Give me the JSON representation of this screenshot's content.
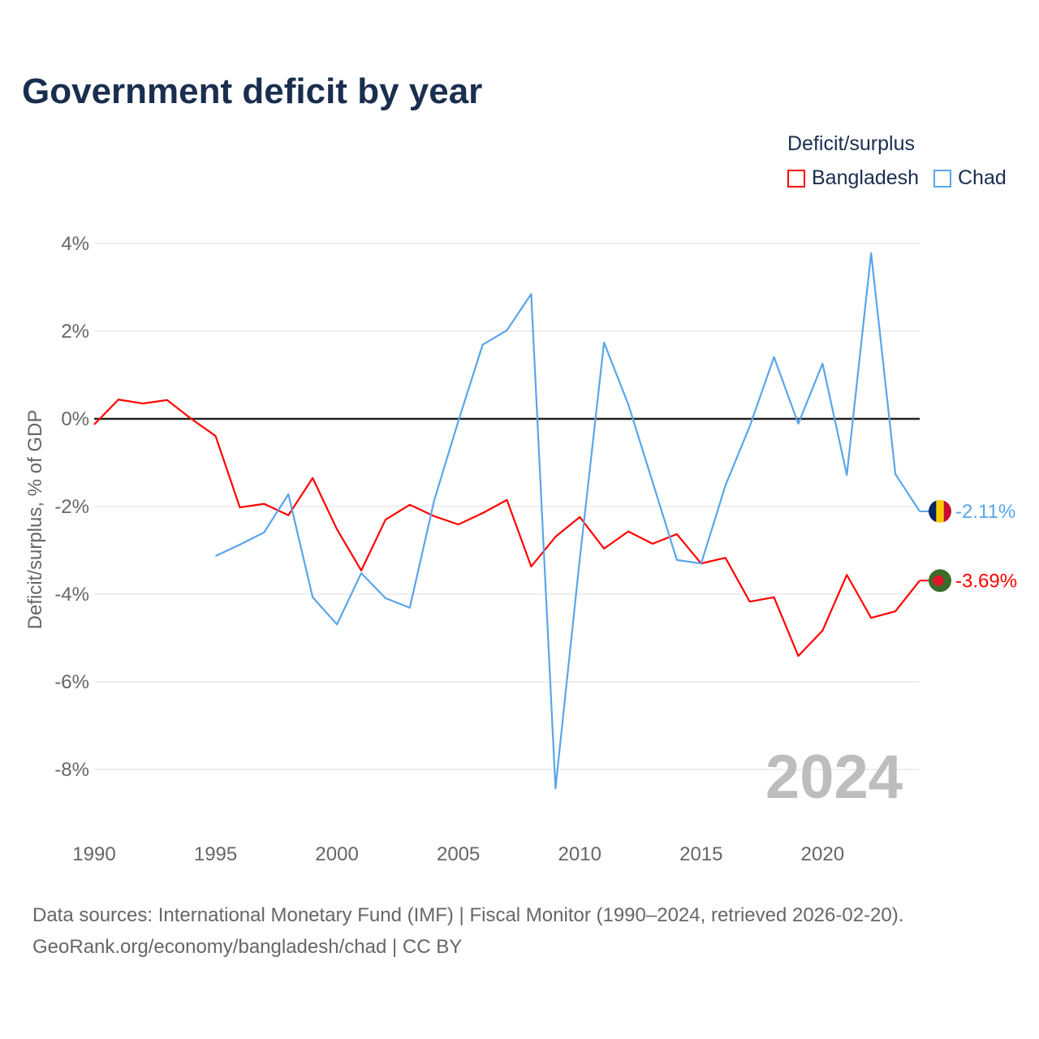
{
  "title": "Government deficit by year",
  "legend": {
    "title": "Deficit/surplus",
    "items": [
      {
        "name": "Bangladesh",
        "color": "#ff0000"
      },
      {
        "name": "Chad",
        "color": "#5aa5ea"
      }
    ]
  },
  "source": {
    "line1": "Data sources: International Monetary Fund (IMF) | Fiscal Monitor (1990–2024, retrieved 2026-02-20).",
    "line2": "GeoRank.org/economy/bangladesh/chad | CC BY"
  },
  "chart_data": {
    "type": "line",
    "title": "Government deficit by year",
    "xlabel": "",
    "ylabel": "Deficit/surplus, % of GDP",
    "xlim": [
      1990,
      2024
    ],
    "ylim": [
      -9,
      4
    ],
    "x_ticks": [
      1990,
      1995,
      2000,
      2005,
      2010,
      2015,
      2020
    ],
    "y_ticks": [
      4,
      2,
      0,
      -2,
      -4,
      -6,
      -8
    ],
    "y_tick_labels": [
      "4%",
      "2%",
      "0%",
      "-2%",
      "-4%",
      "-6%",
      "-8%"
    ],
    "x_tick_labels": [
      "1990",
      "1995",
      "2000",
      "2005",
      "2010",
      "2015",
      "2020"
    ],
    "year_watermark": "2024",
    "grid": true,
    "legend_position": "top-right",
    "series": [
      {
        "name": "Bangladesh",
        "color": "#ff0000",
        "start_year": 1990,
        "end_label": "-3.69%",
        "values": [
          -0.13,
          0.44,
          0.35,
          0.43,
          0.0,
          -0.39,
          -2.02,
          -1.94,
          -2.2,
          -1.35,
          -2.52,
          -3.46,
          -2.3,
          -1.96,
          -2.22,
          -2.41,
          -2.15,
          -1.85,
          -3.37,
          -2.69,
          -2.24,
          -2.96,
          -2.57,
          -2.85,
          -2.63,
          -3.3,
          -3.17,
          -4.17,
          -4.07,
          -5.41,
          -4.83,
          -3.56,
          -4.54,
          -4.39,
          -3.69
        ]
      },
      {
        "name": "Chad",
        "color": "#5aa5ea",
        "start_year": 1995,
        "end_label": "-2.11%",
        "values": [
          -3.13,
          -2.87,
          -2.59,
          -1.72,
          -4.07,
          -4.69,
          -3.52,
          -4.09,
          -4.31,
          -1.87,
          -0.05,
          1.69,
          2.02,
          2.85,
          -8.43,
          -3.2,
          1.74,
          0.33,
          -1.44,
          -3.22,
          -3.3,
          -1.52,
          -0.17,
          1.41,
          -0.11,
          1.26,
          -1.28,
          3.78,
          -1.26,
          -2.11
        ]
      }
    ]
  }
}
